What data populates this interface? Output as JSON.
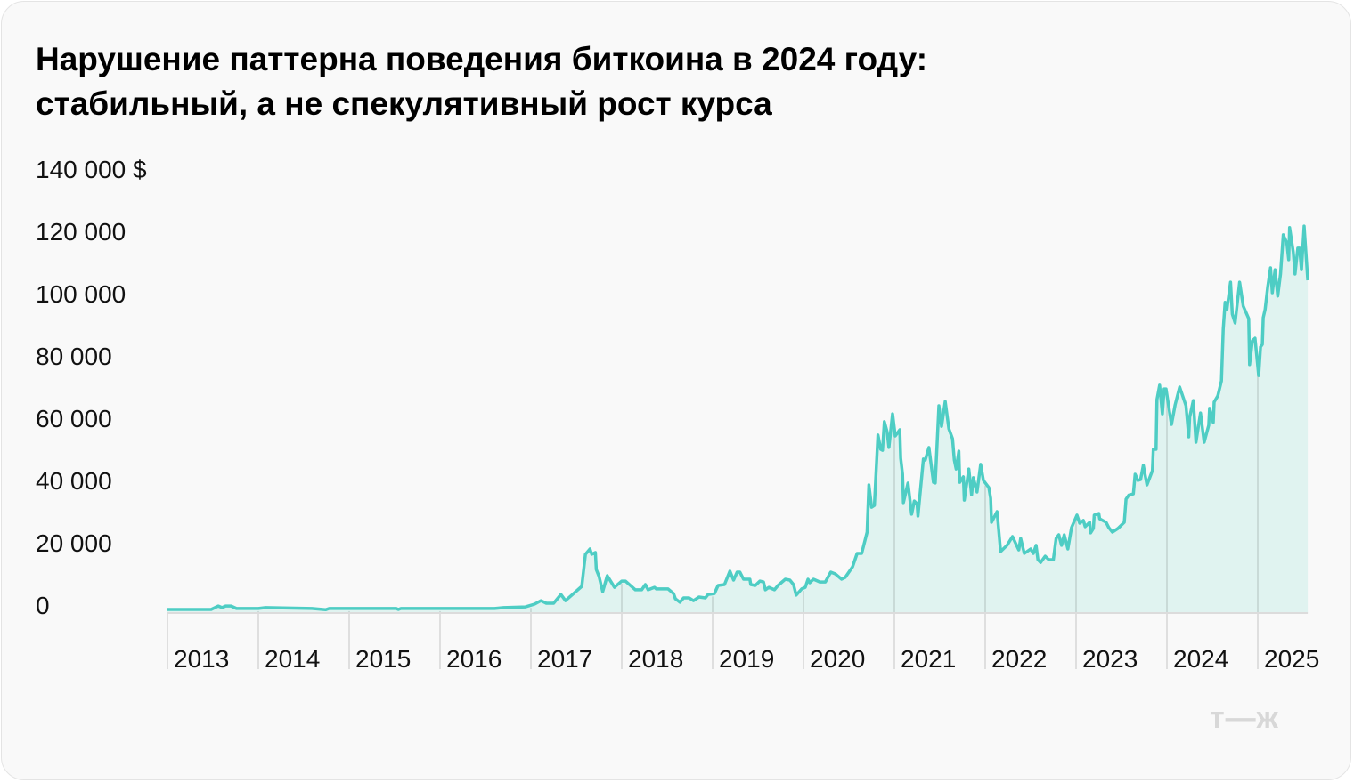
{
  "title": {
    "line1": "Нарушение паттерна поведения биткоина в 2024 году:",
    "line2": "стабильный, а не спекулятивный рост курса"
  },
  "logo": "т—ж",
  "colors": {
    "line": "#4ecdc4",
    "fill": "#e0f3f0",
    "grid": "#dcdcdc"
  },
  "chart_data": {
    "type": "area",
    "title": "Нарушение паттерна поведения биткоина в 2024 году: стабильный, а не спекулятивный рост курса",
    "xlabel": "",
    "ylabel": "",
    "ylim": [
      0,
      140000
    ],
    "xlim": [
      2013,
      2025.55
    ],
    "grid": "vertical lines at year boundaries",
    "legend": "none",
    "y_ticks": [
      {
        "value": 0,
        "label": "0"
      },
      {
        "value": 20000,
        "label": "20 000"
      },
      {
        "value": 40000,
        "label": "40 000"
      },
      {
        "value": 60000,
        "label": "60 000"
      },
      {
        "value": 80000,
        "label": "80 000"
      },
      {
        "value": 100000,
        "label": "100 000"
      },
      {
        "value": 120000,
        "label": "120 000"
      },
      {
        "value": 140000,
        "label": "140 000 $"
      }
    ],
    "x_ticks": [
      {
        "value": 2013,
        "label": "2013"
      },
      {
        "value": 2014,
        "label": "2014"
      },
      {
        "value": 2015,
        "label": "2015"
      },
      {
        "value": 2016,
        "label": "2016"
      },
      {
        "value": 2017,
        "label": "2017"
      },
      {
        "value": 2018,
        "label": "2018"
      },
      {
        "value": 2019,
        "label": "2019"
      },
      {
        "value": 2020,
        "label": "2020"
      },
      {
        "value": 2021,
        "label": "2021"
      },
      {
        "value": 2022,
        "label": "2022"
      },
      {
        "value": 2023,
        "label": "2023"
      },
      {
        "value": 2024,
        "label": "2024"
      },
      {
        "value": 2025,
        "label": "2025"
      }
    ],
    "points": [
      [
        2013.0,
        300
      ],
      [
        2013.48,
        300
      ],
      [
        2013.56,
        1400
      ],
      [
        2013.6,
        900
      ],
      [
        2013.64,
        1400
      ],
      [
        2013.7,
        1400
      ],
      [
        2013.76,
        600
      ],
      [
        2014.0,
        600
      ],
      [
        2014.08,
        900
      ],
      [
        2014.59,
        600
      ],
      [
        2014.74,
        200
      ],
      [
        2014.78,
        600
      ],
      [
        2015.52,
        600
      ],
      [
        2015.54,
        300
      ],
      [
        2015.57,
        600
      ],
      [
        2016.6,
        600
      ],
      [
        2016.7,
        900
      ],
      [
        2016.94,
        1100
      ],
      [
        2017.04,
        2000
      ],
      [
        2017.11,
        3100
      ],
      [
        2017.17,
        2300
      ],
      [
        2017.25,
        2300
      ],
      [
        2017.33,
        5100
      ],
      [
        2017.38,
        3100
      ],
      [
        2017.56,
        7700
      ],
      [
        2017.6,
        18000
      ],
      [
        2017.65,
        19700
      ],
      [
        2017.67,
        18000
      ],
      [
        2017.71,
        18600
      ],
      [
        2017.72,
        13100
      ],
      [
        2017.75,
        10900
      ],
      [
        2017.79,
        6000
      ],
      [
        2017.84,
        11100
      ],
      [
        2017.92,
        7400
      ],
      [
        2018.0,
        9400
      ],
      [
        2018.04,
        9400
      ],
      [
        2018.15,
        6600
      ],
      [
        2018.22,
        6600
      ],
      [
        2018.26,
        8300
      ],
      [
        2018.29,
        6600
      ],
      [
        2018.36,
        7400
      ],
      [
        2018.38,
        6900
      ],
      [
        2018.51,
        6900
      ],
      [
        2018.57,
        5400
      ],
      [
        2018.59,
        3700
      ],
      [
        2018.64,
        2600
      ],
      [
        2018.68,
        4000
      ],
      [
        2018.74,
        4000
      ],
      [
        2018.79,
        3100
      ],
      [
        2018.85,
        4300
      ],
      [
        2018.92,
        4000
      ],
      [
        2018.95,
        5100
      ],
      [
        2019.02,
        5400
      ],
      [
        2019.06,
        8000
      ],
      [
        2019.13,
        8300
      ],
      [
        2019.19,
        12600
      ],
      [
        2019.23,
        9700
      ],
      [
        2019.27,
        12300
      ],
      [
        2019.3,
        12300
      ],
      [
        2019.34,
        10000
      ],
      [
        2019.41,
        10000
      ],
      [
        2019.42,
        8300
      ],
      [
        2019.47,
        8000
      ],
      [
        2019.52,
        9400
      ],
      [
        2019.56,
        9100
      ],
      [
        2019.58,
        6600
      ],
      [
        2019.62,
        7400
      ],
      [
        2019.68,
        6600
      ],
      [
        2019.72,
        8000
      ],
      [
        2019.8,
        10000
      ],
      [
        2019.85,
        9700
      ],
      [
        2019.89,
        8300
      ],
      [
        2019.92,
        4900
      ],
      [
        2019.98,
        6900
      ],
      [
        2020.02,
        7400
      ],
      [
        2020.05,
        10000
      ],
      [
        2020.07,
        8900
      ],
      [
        2020.11,
        10000
      ],
      [
        2020.18,
        9100
      ],
      [
        2020.24,
        9100
      ],
      [
        2020.3,
        12300
      ],
      [
        2020.35,
        11700
      ],
      [
        2020.42,
        10000
      ],
      [
        2020.46,
        10600
      ],
      [
        2020.54,
        14000
      ],
      [
        2020.59,
        18300
      ],
      [
        2020.64,
        18300
      ],
      [
        2020.7,
        25100
      ],
      [
        2020.72,
        40300
      ],
      [
        2020.75,
        33100
      ],
      [
        2020.78,
        33700
      ],
      [
        2020.82,
        56300
      ],
      [
        2020.85,
        51700
      ],
      [
        2020.87,
        51400
      ],
      [
        2020.89,
        60600
      ],
      [
        2020.92,
        57400
      ],
      [
        2020.94,
        52300
      ],
      [
        2020.98,
        63100
      ],
      [
        2021.01,
        56000
      ],
      [
        2021.06,
        58000
      ],
      [
        2021.07,
        48900
      ],
      [
        2021.09,
        43700
      ],
      [
        2021.1,
        34600
      ],
      [
        2021.15,
        40900
      ],
      [
        2021.19,
        30900
      ],
      [
        2021.22,
        35100
      ],
      [
        2021.25,
        34300
      ],
      [
        2021.26,
        30300
      ],
      [
        2021.32,
        48600
      ],
      [
        2021.34,
        48300
      ],
      [
        2021.38,
        52300
      ],
      [
        2021.43,
        41100
      ],
      [
        2021.45,
        40900
      ],
      [
        2021.49,
        65700
      ],
      [
        2021.52,
        59100
      ],
      [
        2021.56,
        67100
      ],
      [
        2021.6,
        58300
      ],
      [
        2021.64,
        55100
      ],
      [
        2021.66,
        48300
      ],
      [
        2021.68,
        45400
      ],
      [
        2021.71,
        51100
      ],
      [
        2021.72,
        41100
      ],
      [
        2021.76,
        42900
      ],
      [
        2021.77,
        35400
      ],
      [
        2021.82,
        45400
      ],
      [
        2021.85,
        37100
      ],
      [
        2021.87,
        42600
      ],
      [
        2021.91,
        38000
      ],
      [
        2021.95,
        46900
      ],
      [
        2021.98,
        41700
      ],
      [
        2022.04,
        39400
      ],
      [
        2022.06,
        36000
      ],
      [
        2022.07,
        28300
      ],
      [
        2022.13,
        31700
      ],
      [
        2022.17,
        18900
      ],
      [
        2022.24,
        20900
      ],
      [
        2022.3,
        23700
      ],
      [
        2022.37,
        19400
      ],
      [
        2022.39,
        23100
      ],
      [
        2022.43,
        18300
      ],
      [
        2022.5,
        19700
      ],
      [
        2022.53,
        18300
      ],
      [
        2022.56,
        20900
      ],
      [
        2022.58,
        16300
      ],
      [
        2022.61,
        15400
      ],
      [
        2022.66,
        17400
      ],
      [
        2022.7,
        16300
      ],
      [
        2022.75,
        16300
      ],
      [
        2022.78,
        23100
      ],
      [
        2022.81,
        24300
      ],
      [
        2022.84,
        20900
      ],
      [
        2022.87,
        24300
      ],
      [
        2022.91,
        19700
      ],
      [
        2022.95,
        26600
      ],
      [
        2023.01,
        30600
      ],
      [
        2023.04,
        28000
      ],
      [
        2023.08,
        28900
      ],
      [
        2023.1,
        26900
      ],
      [
        2023.15,
        28300
      ],
      [
        2023.16,
        24900
      ],
      [
        2023.19,
        26300
      ],
      [
        2023.2,
        30600
      ],
      [
        2023.25,
        31100
      ],
      [
        2023.26,
        29400
      ],
      [
        2023.33,
        28300
      ],
      [
        2023.36,
        26600
      ],
      [
        2023.4,
        25100
      ],
      [
        2023.46,
        26300
      ],
      [
        2023.53,
        28300
      ],
      [
        2023.55,
        35700
      ],
      [
        2023.58,
        37000
      ],
      [
        2023.63,
        37400
      ],
      [
        2023.65,
        43700
      ],
      [
        2023.68,
        41700
      ],
      [
        2023.71,
        42000
      ],
      [
        2023.74,
        46600
      ],
      [
        2023.78,
        40300
      ],
      [
        2023.84,
        44900
      ],
      [
        2023.85,
        51700
      ],
      [
        2023.88,
        51700
      ],
      [
        2023.89,
        67700
      ],
      [
        2023.92,
        72300
      ],
      [
        2023.95,
        63100
      ],
      [
        2023.97,
        71100
      ],
      [
        2023.99,
        71100
      ],
      [
        2024.05,
        59700
      ],
      [
        2024.09,
        66000
      ],
      [
        2024.14,
        71700
      ],
      [
        2024.21,
        65700
      ],
      [
        2024.24,
        55700
      ],
      [
        2024.25,
        62000
      ],
      [
        2024.29,
        67400
      ],
      [
        2024.32,
        54000
      ],
      [
        2024.37,
        63400
      ],
      [
        2024.41,
        54000
      ],
      [
        2024.46,
        59400
      ],
      [
        2024.47,
        64900
      ],
      [
        2024.51,
        60300
      ],
      [
        2024.52,
        66900
      ],
      [
        2024.56,
        68900
      ],
      [
        2024.6,
        73700
      ],
      [
        2024.62,
        90300
      ],
      [
        2024.64,
        98900
      ],
      [
        2024.66,
        96600
      ],
      [
        2024.7,
        105400
      ],
      [
        2024.72,
        95100
      ],
      [
        2024.75,
        92300
      ],
      [
        2024.8,
        105400
      ],
      [
        2024.84,
        97700
      ],
      [
        2024.9,
        93700
      ],
      [
        2024.91,
        78900
      ],
      [
        2024.94,
        86600
      ],
      [
        2024.97,
        87400
      ],
      [
        2025.01,
        75400
      ],
      [
        2025.03,
        84600
      ],
      [
        2025.05,
        85400
      ],
      [
        2025.06,
        94000
      ],
      [
        2025.08,
        96600
      ],
      [
        2025.11,
        104000
      ],
      [
        2025.14,
        110000
      ],
      [
        2025.16,
        102000
      ],
      [
        2025.19,
        109400
      ],
      [
        2025.22,
        100900
      ],
      [
        2025.25,
        108000
      ],
      [
        2025.28,
        120600
      ],
      [
        2025.32,
        118000
      ],
      [
        2025.34,
        112600
      ],
      [
        2025.35,
        122900
      ],
      [
        2025.39,
        115100
      ],
      [
        2025.41,
        108000
      ],
      [
        2025.44,
        116300
      ],
      [
        2025.46,
        116300
      ],
      [
        2025.48,
        109400
      ],
      [
        2025.51,
        123400
      ],
      [
        2025.55,
        106000
      ]
    ]
  }
}
